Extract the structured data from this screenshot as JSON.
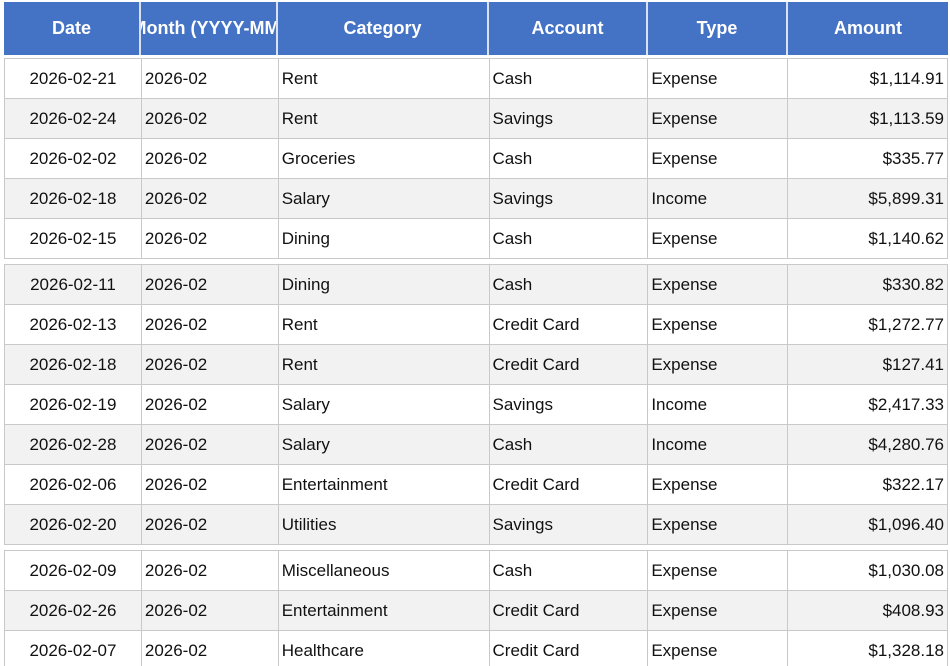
{
  "table": {
    "columns": [
      {
        "key": "date",
        "label": "Date"
      },
      {
        "key": "month",
        "label": "Month (YYYY-MM)"
      },
      {
        "key": "category",
        "label": "Category"
      },
      {
        "key": "account",
        "label": "Account"
      },
      {
        "key": "type",
        "label": "Type"
      },
      {
        "key": "amount",
        "label": "Amount"
      }
    ],
    "rows": [
      {
        "date": "2026-02-21",
        "month": "2026-02",
        "category": "Rent",
        "account": "Cash",
        "type": "Expense",
        "amount": "$1,114.91"
      },
      {
        "date": "2026-02-24",
        "month": "2026-02",
        "category": "Rent",
        "account": "Savings",
        "type": "Expense",
        "amount": "$1,113.59"
      },
      {
        "date": "2026-02-02",
        "month": "2026-02",
        "category": "Groceries",
        "account": "Cash",
        "type": "Expense",
        "amount": "$335.77"
      },
      {
        "date": "2026-02-18",
        "month": "2026-02",
        "category": "Salary",
        "account": "Savings",
        "type": "Income",
        "amount": "$5,899.31"
      },
      {
        "date": "2026-02-15",
        "month": "2026-02",
        "category": "Dining",
        "account": "Cash",
        "type": "Expense",
        "amount": "$1,140.62"
      },
      {
        "date": "2026-02-11",
        "month": "2026-02",
        "category": "Dining",
        "account": "Cash",
        "type": "Expense",
        "amount": "$330.82"
      },
      {
        "date": "2026-02-13",
        "month": "2026-02",
        "category": "Rent",
        "account": "Credit Card",
        "type": "Expense",
        "amount": "$1,272.77"
      },
      {
        "date": "2026-02-18",
        "month": "2026-02",
        "category": "Rent",
        "account": "Credit Card",
        "type": "Expense",
        "amount": "$127.41"
      },
      {
        "date": "2026-02-19",
        "month": "2026-02",
        "category": "Salary",
        "account": "Savings",
        "type": "Income",
        "amount": "$2,417.33"
      },
      {
        "date": "2026-02-28",
        "month": "2026-02",
        "category": "Salary",
        "account": "Cash",
        "type": "Income",
        "amount": "$4,280.76"
      },
      {
        "date": "2026-02-06",
        "month": "2026-02",
        "category": "Entertainment",
        "account": "Credit Card",
        "type": "Expense",
        "amount": "$322.17"
      },
      {
        "date": "2026-02-20",
        "month": "2026-02",
        "category": "Utilities",
        "account": "Savings",
        "type": "Expense",
        "amount": "$1,096.40"
      },
      {
        "date": "2026-02-09",
        "month": "2026-02",
        "category": "Miscellaneous",
        "account": "Cash",
        "type": "Expense",
        "amount": "$1,030.08"
      },
      {
        "date": "2026-02-26",
        "month": "2026-02",
        "category": "Entertainment",
        "account": "Credit Card",
        "type": "Expense",
        "amount": "$408.93"
      },
      {
        "date": "2026-02-07",
        "month": "2026-02",
        "category": "Healthcare",
        "account": "Credit Card",
        "type": "Expense",
        "amount": "$1,328.18"
      }
    ],
    "group_breaks_after": [
      4,
      11
    ]
  },
  "colors": {
    "header_bg": "#4472C4",
    "header_text": "#FFFFFF",
    "row_alt_bg": "#F2F2F2",
    "grid_border": "#C9C9C9"
  }
}
